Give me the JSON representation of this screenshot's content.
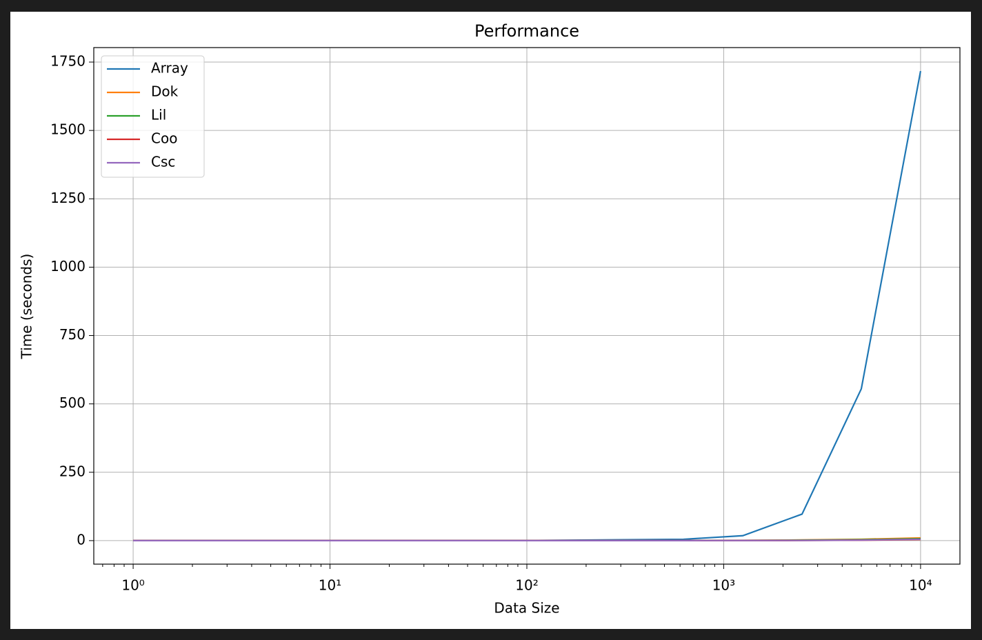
{
  "chart_data": {
    "type": "line",
    "title": "Performance",
    "x_label": "Data Size",
    "y_label": "Time (seconds)",
    "x": [
      1,
      10,
      100,
      625,
      1250,
      2500,
      5000,
      10000
    ],
    "series": [
      {
        "name": "Array",
        "color": "#1f77b4",
        "values": [
          0.01,
          0.05,
          0.5,
          5,
          18,
          97,
          555,
          1717
        ]
      },
      {
        "name": "Dok",
        "color": "#ff7f0e",
        "values": [
          0.01,
          0.02,
          0.1,
          0.5,
          1,
          2.5,
          5,
          10
        ]
      },
      {
        "name": "Lil",
        "color": "#2ca02c",
        "values": [
          0.01,
          0.02,
          0.1,
          0.4,
          0.8,
          1.7,
          3.5,
          7
        ]
      },
      {
        "name": "Coo",
        "color": "#d62728",
        "values": [
          0,
          0.01,
          0.02,
          0.1,
          0.2,
          0.5,
          1.5,
          4
        ]
      },
      {
        "name": "Csc",
        "color": "#9467bd",
        "values": [
          0,
          0.01,
          0.02,
          0.1,
          0.3,
          0.7,
          2,
          5
        ]
      }
    ],
    "xscale": "log",
    "xlim": [
      0.631,
      15849
    ],
    "xticks": [
      {
        "value": 1,
        "label": "10⁰"
      },
      {
        "value": 10,
        "label": "10¹"
      },
      {
        "value": 100,
        "label": "10²"
      },
      {
        "value": 1000,
        "label": "10³"
      },
      {
        "value": 10000,
        "label": "10⁴"
      }
    ],
    "ylim": [
      -86,
      1803
    ],
    "yticks": [
      0,
      250,
      500,
      750,
      1000,
      1250,
      1500,
      1750
    ],
    "grid": true,
    "legend": "upper-left"
  }
}
